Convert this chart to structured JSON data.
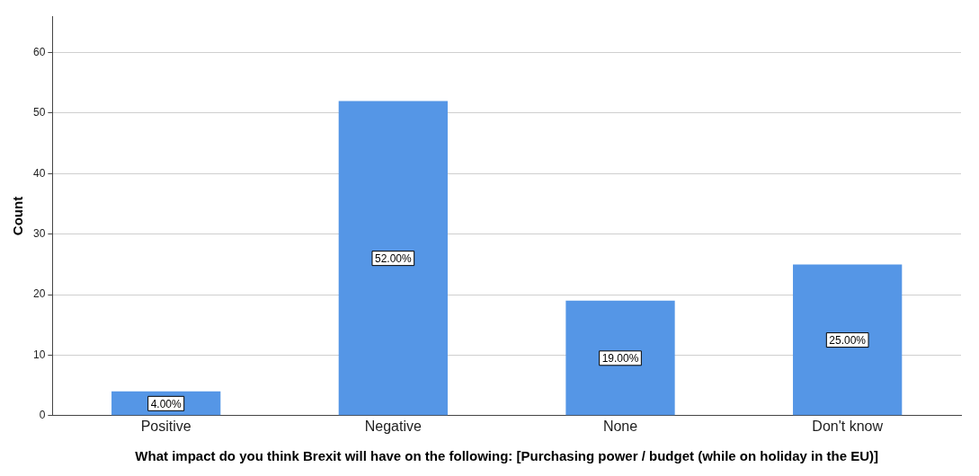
{
  "chart_data": {
    "type": "bar",
    "categories": [
      "Positive",
      "Negative",
      "None",
      "Don't know"
    ],
    "values": [
      4,
      52,
      19,
      25
    ],
    "value_labels": [
      "4.00%",
      "52.00%",
      "19.00%",
      "25.00%"
    ],
    "color": "#5596e6",
    "ylabel": "Count",
    "xlabel": "What impact do you think Brexit will have on the following: [Purchasing power / budget (while on holiday in the EU)]",
    "ylim": [
      0,
      66
    ],
    "yticks": [
      0,
      10,
      20,
      30,
      40,
      50,
      60
    ],
    "grid": "y",
    "legend": false
  }
}
